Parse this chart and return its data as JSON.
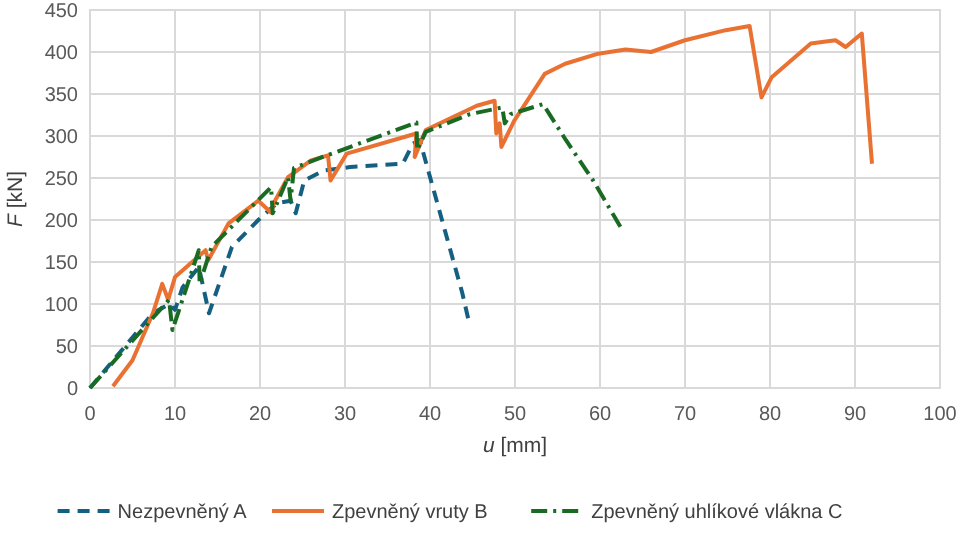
{
  "chart_data": {
    "type": "line",
    "xlabel": "u [mm]",
    "ylabel": "F [kN]",
    "xlim": [
      0,
      100
    ],
    "xticks": [
      0,
      10,
      20,
      30,
      40,
      50,
      60,
      70,
      80,
      90,
      100
    ],
    "ylim": [
      0,
      450
    ],
    "yticks": [
      0,
      50,
      100,
      150,
      200,
      250,
      300,
      350,
      400,
      450
    ],
    "grid": true,
    "legend": "bottom",
    "series": [
      {
        "name": "Nezpevněný A",
        "color": "#156082",
        "line_style": "dashed",
        "x": [
          0,
          7.4,
          9.3,
          10,
          10.9,
          12.8,
          14,
          16.7,
          19.8,
          22,
          23.6,
          24.2,
          25.2,
          27.5,
          30.6,
          36.8,
          38,
          38.8,
          43.8,
          44.6
        ],
        "values": [
          0,
          89,
          100,
          93,
          120,
          144,
          89,
          168,
          200,
          220,
          223,
          208,
          247,
          259,
          263,
          267,
          291,
          295,
          113,
          78
        ]
      },
      {
        "name": "Zpevněný vruty B",
        "color": "#e97132",
        "line_style": "solid",
        "x": [
          2.7,
          5,
          7.4,
          8.5,
          9.2,
          10,
          13.6,
          13.9,
          16.3,
          19.8,
          21.3,
          21.6,
          23.3,
          26,
          28,
          28.3,
          30.2,
          38.4,
          38.2,
          39.5,
          45.5,
          47.6,
          47.8,
          48.2,
          48.4,
          49.9,
          53.5,
          55.9,
          59.8,
          63,
          66,
          70,
          74.8,
          77.6,
          79,
          80.2,
          84.8,
          87.7,
          88.9,
          90.8,
          92
        ],
        "values": [
          2,
          33,
          89,
          124,
          105,
          132,
          164,
          152,
          196,
          223,
          209,
          220,
          251,
          271,
          277,
          247,
          279,
          303,
          275,
          307,
          336,
          342,
          303,
          315,
          287,
          318,
          374,
          386,
          398,
          403,
          400,
          414,
          426,
          431,
          346,
          370,
          410,
          414,
          406,
          422,
          267
        ]
      },
      {
        "name": "Zpevněný uhlíkové vlákna C",
        "color": "#196b24",
        "line_style": "dashdot",
        "x": [
          0,
          9.3,
          9.7,
          12.8,
          12.9,
          14.3,
          21.3,
          21.5,
          23.3,
          23.6,
          24,
          27.9,
          38.4,
          38.5,
          39.5,
          44.7,
          48.5,
          48.8,
          49.5,
          53.3,
          56,
          59.2,
          62.4
        ],
        "values": [
          0,
          105,
          69,
          164,
          124,
          168,
          239,
          208,
          251,
          223,
          262,
          277,
          316,
          283,
          305,
          326,
          334,
          315,
          326,
          338,
          295,
          247,
          192
        ]
      }
    ]
  }
}
